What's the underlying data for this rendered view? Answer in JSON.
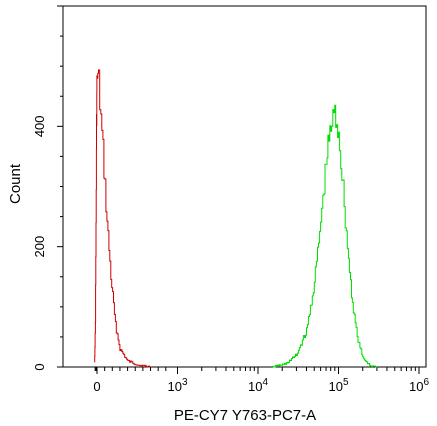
{
  "chart_data": {
    "type": "line",
    "title": "",
    "xlabel": "PE-CY7 Y763-PC7-A",
    "ylabel": "Count",
    "x_scale": "biexponential",
    "xlim": [
      -300,
      1000000
    ],
    "ylim": [
      0,
      600
    ],
    "y_ticks": [
      {
        "value": 0,
        "label": "0"
      },
      {
        "value": 200,
        "label": "200"
      },
      {
        "value": 400,
        "label": "400"
      }
    ],
    "x_ticks": [
      {
        "value": 0,
        "base": "0",
        "exp": ""
      },
      {
        "value": 1000,
        "base": "10",
        "exp": "3"
      },
      {
        "value": 10000,
        "base": "10",
        "exp": "4"
      },
      {
        "value": 100000,
        "base": "10",
        "exp": "5"
      },
      {
        "value": 1000000,
        "base": "10",
        "exp": "6"
      }
    ],
    "series": [
      {
        "color": "#cc0000",
        "peak_x": 0,
        "peak_count": 490,
        "points": [
          [
            -280,
            10
          ],
          [
            -230,
            30
          ],
          [
            -180,
            80
          ],
          [
            -130,
            180
          ],
          [
            -90,
            300
          ],
          [
            -50,
            400
          ],
          [
            -20,
            450
          ],
          [
            0,
            480
          ],
          [
            20,
            470
          ],
          [
            50,
            410
          ],
          [
            90,
            330
          ],
          [
            130,
            240
          ],
          [
            180,
            150
          ],
          [
            240,
            70
          ],
          [
            300,
            30
          ],
          [
            400,
            10
          ],
          [
            550,
            3
          ],
          [
            700,
            0
          ]
        ]
      },
      {
        "color": "#00dd00",
        "peak_x": 85000,
        "peak_count": 420,
        "points": [
          [
            15000,
            0
          ],
          [
            22000,
            5
          ],
          [
            30000,
            20
          ],
          [
            40000,
            60
          ],
          [
            50000,
            140
          ],
          [
            60000,
            240
          ],
          [
            70000,
            340
          ],
          [
            80000,
            400
          ],
          [
            90000,
            420
          ],
          [
            100000,
            390
          ],
          [
            110000,
            320
          ],
          [
            125000,
            220
          ],
          [
            145000,
            120
          ],
          [
            170000,
            50
          ],
          [
            200000,
            15
          ],
          [
            250000,
            2
          ],
          [
            300000,
            0
          ]
        ]
      }
    ]
  }
}
